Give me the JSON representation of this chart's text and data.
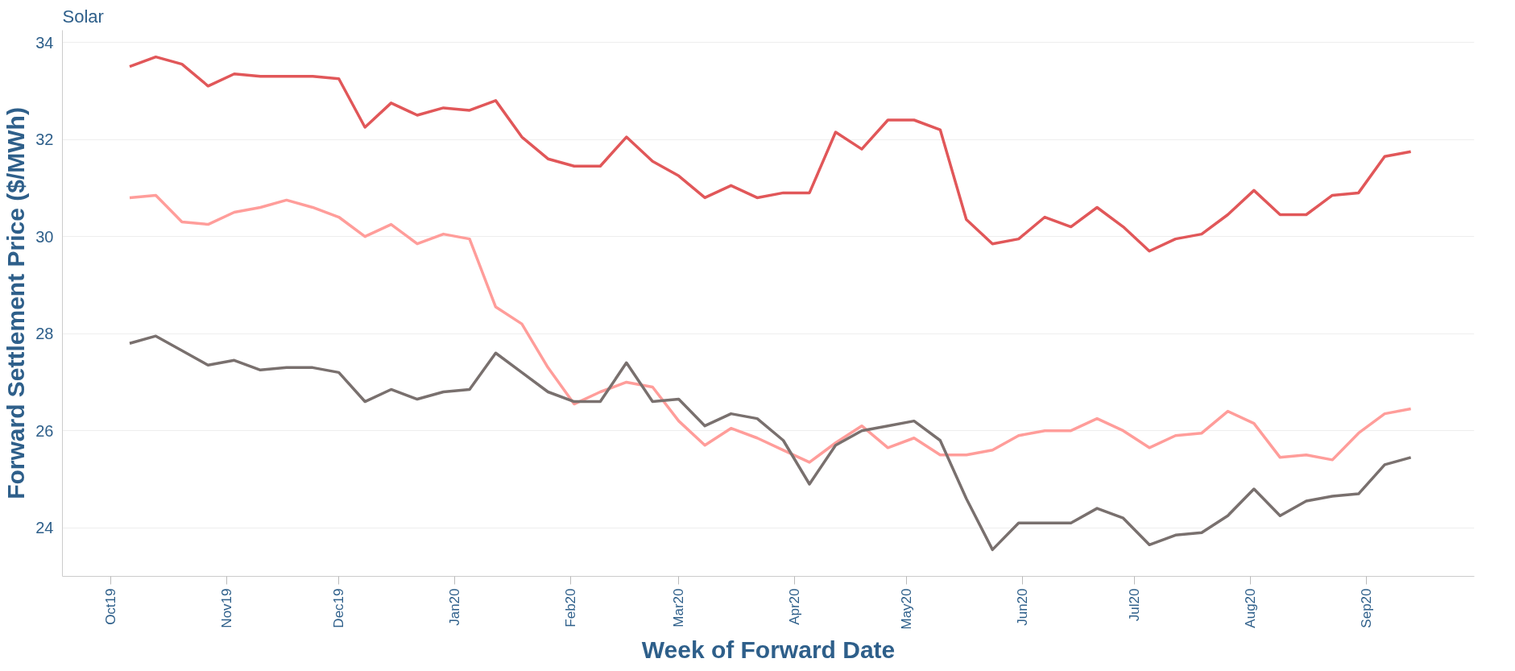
{
  "chart_data": {
    "type": "line",
    "title": "Solar",
    "xlabel": "Week of Forward Date",
    "ylabel": "Forward Settlement Price ($/MWh)",
    "x": [
      "2019-10-06",
      "2019-10-13",
      "2019-10-20",
      "2019-10-27",
      "2019-11-03",
      "2019-11-10",
      "2019-11-17",
      "2019-11-24",
      "2019-12-01",
      "2019-12-08",
      "2019-12-15",
      "2019-12-22",
      "2019-12-29",
      "2020-01-05",
      "2020-01-12",
      "2020-01-19",
      "2020-01-26",
      "2020-02-02",
      "2020-02-09",
      "2020-02-16",
      "2020-02-23",
      "2020-03-01",
      "2020-03-08",
      "2020-03-15",
      "2020-03-22",
      "2020-03-29",
      "2020-04-05",
      "2020-04-12",
      "2020-04-19",
      "2020-04-26",
      "2020-05-03",
      "2020-05-10",
      "2020-05-17",
      "2020-05-24",
      "2020-05-31",
      "2020-06-07",
      "2020-06-14",
      "2020-06-21",
      "2020-06-28",
      "2020-07-05",
      "2020-07-12",
      "2020-07-19",
      "2020-07-26",
      "2020-08-02",
      "2020-08-09",
      "2020-08-16",
      "2020-08-23",
      "2020-08-30",
      "2020-09-06",
      "2020-09-13"
    ],
    "series": [
      {
        "color": "#e15759",
        "values": [
          33.5,
          33.7,
          33.55,
          33.1,
          33.35,
          33.3,
          33.3,
          33.3,
          33.25,
          32.25,
          32.75,
          32.5,
          32.65,
          32.6,
          32.8,
          32.05,
          31.6,
          31.45,
          31.45,
          32.05,
          31.55,
          31.25,
          30.8,
          31.05,
          30.8,
          30.9,
          30.9,
          32.15,
          31.8,
          32.4,
          32.4,
          32.2,
          30.35,
          29.85,
          29.95,
          30.4,
          30.2,
          30.6,
          30.2,
          29.7,
          29.95,
          30.05,
          30.45,
          30.95,
          30.45,
          30.45,
          30.85,
          30.9,
          31.65,
          31.75
        ]
      },
      {
        "color": "#ff9d9a",
        "values": [
          30.8,
          30.85,
          30.3,
          30.25,
          30.5,
          30.6,
          30.75,
          30.6,
          30.4,
          30.0,
          30.25,
          29.85,
          30.05,
          29.95,
          28.55,
          28.2,
          27.3,
          26.55,
          26.8,
          27.0,
          26.9,
          26.2,
          25.7,
          26.05,
          25.85,
          25.6,
          25.35,
          25.75,
          26.1,
          25.65,
          25.85,
          25.5,
          25.5,
          25.6,
          25.9,
          26.0,
          26.0,
          26.25,
          26.0,
          25.65,
          25.9,
          25.95,
          26.4,
          26.15,
          25.45,
          25.5,
          25.4,
          25.95,
          26.35,
          26.45
        ]
      },
      {
        "color": "#79706e",
        "values": [
          27.8,
          27.95,
          27.65,
          27.35,
          27.45,
          27.25,
          27.3,
          27.3,
          27.2,
          26.6,
          26.85,
          26.65,
          26.8,
          26.85,
          27.6,
          27.2,
          26.8,
          26.6,
          26.6,
          27.4,
          26.6,
          26.65,
          26.1,
          26.35,
          26.25,
          25.8,
          24.9,
          25.7,
          26.0,
          26.1,
          26.2,
          25.8,
          24.6,
          23.55,
          24.1,
          24.1,
          24.1,
          24.4,
          24.2,
          23.65,
          23.85,
          23.9,
          24.25,
          24.8,
          24.25,
          24.55,
          24.65,
          24.7,
          25.3,
          25.45
        ]
      }
    ],
    "ylim": [
      23,
      34.25
    ],
    "yticks": [
      24,
      26,
      28,
      30,
      32,
      34
    ],
    "xlim": [
      "2019-09-18",
      "2020-09-30"
    ],
    "xticks": [
      {
        "value": "2019-10-01",
        "label": "Oct19"
      },
      {
        "value": "2019-11-01",
        "label": "Nov19"
      },
      {
        "value": "2019-12-01",
        "label": "Dec19"
      },
      {
        "value": "2020-01-01",
        "label": "Jan20"
      },
      {
        "value": "2020-02-01",
        "label": "Feb20"
      },
      {
        "value": "2020-03-01",
        "label": "Mar20"
      },
      {
        "value": "2020-04-01",
        "label": "Apr20"
      },
      {
        "value": "2020-05-01",
        "label": "May20"
      },
      {
        "value": "2020-06-01",
        "label": "Jun20"
      },
      {
        "value": "2020-07-01",
        "label": "Jul20"
      },
      {
        "value": "2020-08-01",
        "label": "Aug20"
      },
      {
        "value": "2020-09-01",
        "label": "Sep20"
      }
    ],
    "grid": "y",
    "line_style": "solid"
  }
}
